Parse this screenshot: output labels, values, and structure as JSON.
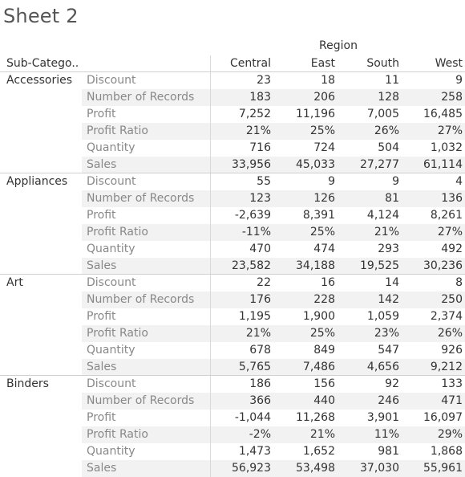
{
  "sheet": {
    "title": "Sheet 2"
  },
  "columns": {
    "region_label": "Region",
    "row_header": "Sub-Catego..",
    "regions": [
      "Central",
      "East",
      "South",
      "West"
    ]
  },
  "groups": [
    {
      "name": "Accessories",
      "rows": [
        {
          "measure": "Discount",
          "values": [
            "23",
            "18",
            "11",
            "9"
          ]
        },
        {
          "measure": "Number of Records",
          "values": [
            "183",
            "206",
            "128",
            "258"
          ]
        },
        {
          "measure": "Profit",
          "values": [
            "7,252",
            "11,196",
            "7,005",
            "16,485"
          ]
        },
        {
          "measure": "Profit Ratio",
          "values": [
            "21%",
            "25%",
            "26%",
            "27%"
          ]
        },
        {
          "measure": "Quantity",
          "values": [
            "716",
            "724",
            "504",
            "1,032"
          ]
        },
        {
          "measure": "Sales",
          "values": [
            "33,956",
            "45,033",
            "27,277",
            "61,114"
          ]
        }
      ]
    },
    {
      "name": "Appliances",
      "rows": [
        {
          "measure": "Discount",
          "values": [
            "55",
            "9",
            "9",
            "4"
          ]
        },
        {
          "measure": "Number of Records",
          "values": [
            "123",
            "126",
            "81",
            "136"
          ]
        },
        {
          "measure": "Profit",
          "values": [
            "-2,639",
            "8,391",
            "4,124",
            "8,261"
          ]
        },
        {
          "measure": "Profit Ratio",
          "values": [
            "-11%",
            "25%",
            "21%",
            "27%"
          ]
        },
        {
          "measure": "Quantity",
          "values": [
            "470",
            "474",
            "293",
            "492"
          ]
        },
        {
          "measure": "Sales",
          "values": [
            "23,582",
            "34,188",
            "19,525",
            "30,236"
          ]
        }
      ]
    },
    {
      "name": "Art",
      "rows": [
        {
          "measure": "Discount",
          "values": [
            "22",
            "16",
            "14",
            "8"
          ]
        },
        {
          "measure": "Number of Records",
          "values": [
            "176",
            "228",
            "142",
            "250"
          ]
        },
        {
          "measure": "Profit",
          "values": [
            "1,195",
            "1,900",
            "1,059",
            "2,374"
          ]
        },
        {
          "measure": "Profit Ratio",
          "values": [
            "21%",
            "25%",
            "23%",
            "26%"
          ]
        },
        {
          "measure": "Quantity",
          "values": [
            "678",
            "849",
            "547",
            "926"
          ]
        },
        {
          "measure": "Sales",
          "values": [
            "5,765",
            "7,486",
            "4,656",
            "9,212"
          ]
        }
      ]
    },
    {
      "name": "Binders",
      "rows": [
        {
          "measure": "Discount",
          "values": [
            "186",
            "156",
            "92",
            "133"
          ]
        },
        {
          "measure": "Number of Records",
          "values": [
            "366",
            "440",
            "246",
            "471"
          ]
        },
        {
          "measure": "Profit",
          "values": [
            "-1,044",
            "11,268",
            "3,901",
            "16,097"
          ]
        },
        {
          "measure": "Profit Ratio",
          "values": [
            "-2%",
            "21%",
            "11%",
            "29%"
          ]
        },
        {
          "measure": "Quantity",
          "values": [
            "1,473",
            "1,652",
            "981",
            "1,868"
          ]
        },
        {
          "measure": "Sales",
          "values": [
            "56,923",
            "53,498",
            "37,030",
            "55,961"
          ]
        }
      ]
    }
  ]
}
